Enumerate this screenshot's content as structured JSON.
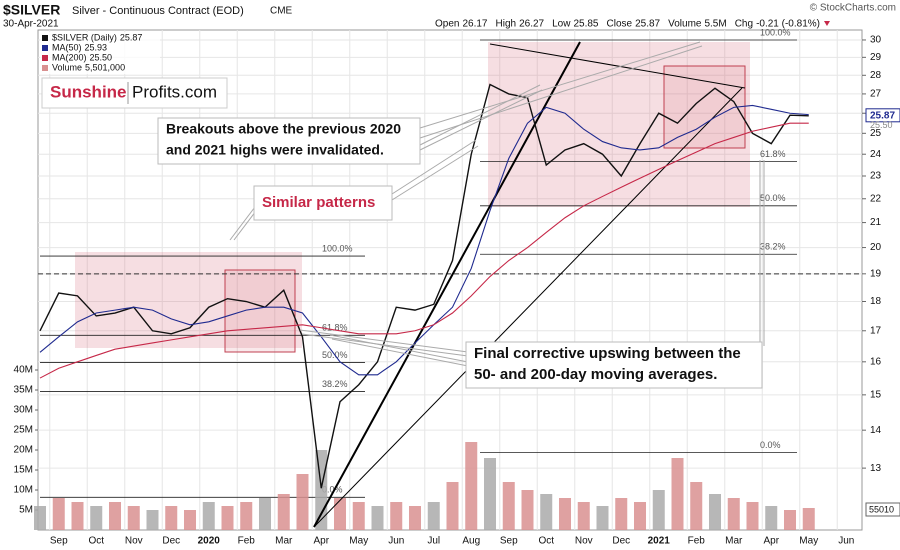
{
  "chart_data": {
    "type": "line",
    "title": "$SILVER",
    "subtitle": "Silver - Continuous Contract (EOD)",
    "exchange": "CME",
    "date": "30-Apr-2021",
    "copyright": "© StockCharts.com",
    "quote": [
      {
        "label": "Open",
        "value": "26.17"
      },
      {
        "label": "High",
        "value": "26.27"
      },
      {
        "label": "Low",
        "value": "25.85"
      },
      {
        "label": "Close",
        "value": "25.87"
      },
      {
        "label": "Volume",
        "value": "5.5M"
      },
      {
        "label": "Chg",
        "value": "-0.21 (-0.81%)"
      }
    ],
    "log_scale": true,
    "grid": true,
    "categories": [
      null,
      "Sep",
      null,
      "Oct",
      null,
      "Nov",
      null,
      "Dec",
      null,
      "2020",
      null,
      "Feb",
      null,
      "Mar",
      null,
      "Apr",
      null,
      "May",
      null,
      "Jun",
      null,
      "Jul",
      null,
      "Aug",
      null,
      "Sep",
      null,
      "Oct",
      null,
      "Nov",
      null,
      "Dec",
      null,
      "2021",
      null,
      "Feb",
      null,
      "Mar",
      null,
      "Apr",
      null,
      "May",
      null,
      "Jun"
    ],
    "series": [
      {
        "name": "$SILVER (Daily)",
        "color": "#111111",
        "last_label": "25.87",
        "values": [
          17.0,
          18.3,
          18.2,
          17.5,
          17.6,
          17.8,
          17.0,
          16.9,
          17.1,
          17.8,
          18.1,
          18.0,
          17.8,
          18.4,
          16.8,
          12.5,
          14.8,
          15.3,
          16.0,
          17.8,
          17.7,
          17.9,
          19.5,
          24.0,
          27.5,
          27.0,
          26.8,
          23.5,
          24.2,
          24.5,
          24.0,
          23.0,
          24.5,
          26.0,
          25.5,
          26.5,
          27.3,
          26.6,
          25.0,
          24.5,
          25.9,
          25.87,
          null,
          null
        ]
      },
      {
        "name": "MA(50)",
        "color": "#1f2a8f",
        "last_label": "25.93",
        "values": [
          16.3,
          16.8,
          17.3,
          17.6,
          17.7,
          17.8,
          17.7,
          17.4,
          17.2,
          17.3,
          17.5,
          17.7,
          17.8,
          17.8,
          17.6,
          16.8,
          16.0,
          15.6,
          15.6,
          16.0,
          16.6,
          17.2,
          17.8,
          19.2,
          21.5,
          23.8,
          25.5,
          26.3,
          26.0,
          25.2,
          24.6,
          24.3,
          24.2,
          24.3,
          24.8,
          25.2,
          25.8,
          26.3,
          26.4,
          26.2,
          26.0,
          25.93,
          null,
          null
        ]
      },
      {
        "name": "MA(200)",
        "color": "#c62848",
        "last_label": "25.50",
        "values": [
          15.5,
          15.8,
          16.0,
          16.2,
          16.4,
          16.5,
          16.6,
          16.7,
          16.8,
          16.9,
          17.0,
          17.05,
          17.1,
          17.15,
          17.2,
          17.1,
          17.0,
          16.9,
          16.9,
          16.9,
          17.0,
          17.2,
          17.6,
          18.2,
          18.9,
          19.5,
          20.0,
          20.6,
          21.2,
          21.7,
          22.1,
          22.5,
          22.9,
          23.3,
          23.7,
          24.1,
          24.5,
          24.8,
          25.1,
          25.3,
          25.5,
          25.5,
          null,
          null
        ]
      },
      {
        "name": "Volume",
        "color": "#d99090",
        "axis": "y2",
        "last_label": "5,501,000",
        "values": [
          6000000,
          8000000,
          7000000,
          6000000,
          7000000,
          6000000,
          5000000,
          6000000,
          5000000,
          7000000,
          6000000,
          7000000,
          8000000,
          9000000,
          14000000,
          20000000,
          8000000,
          7000000,
          6000000,
          7000000,
          6000000,
          7000000,
          12000000,
          22000000,
          18000000,
          12000000,
          10000000,
          9000000,
          8000000,
          7000000,
          6000000,
          8000000,
          7000000,
          10000000,
          18000000,
          12000000,
          9000000,
          8000000,
          7000000,
          6000000,
          5000000,
          5501000,
          null,
          null
        ]
      }
    ],
    "ylim": [
      11.52,
      30.59
    ],
    "yticks": [
      13,
      14,
      15,
      16,
      17,
      18,
      19,
      20,
      21,
      22,
      23,
      24,
      25,
      26,
      27,
      28,
      29,
      30
    ],
    "y2lim": [
      0,
      40000000
    ],
    "y2ticks": [
      {
        "value": 5000000,
        "label": "5M"
      },
      {
        "value": 10000000,
        "label": "10M"
      },
      {
        "value": 15000000,
        "label": "15M"
      },
      {
        "value": 20000000,
        "label": "20M"
      },
      {
        "value": 25000000,
        "label": "25M"
      },
      {
        "value": 30000000,
        "label": "30M"
      },
      {
        "value": 35000000,
        "label": "35M"
      },
      {
        "value": 40000000,
        "label": "40M"
      }
    ],
    "volume_badge": "55010",
    "dashed_level": 19,
    "fibonacci": [
      {
        "levels": [
          {
            "label": "100.0%",
            "value": 19.67
          },
          {
            "label": "61.8%",
            "value": 16.85
          },
          {
            "label": "50.0%",
            "value": 15.98
          },
          {
            "label": "38.2%",
            "value": 15.1
          },
          {
            "label": "0.0%",
            "value": 12.28
          }
        ]
      },
      {
        "levels": [
          {
            "label": "100.0%",
            "value": 30.0
          },
          {
            "label": "61.8%",
            "value": 23.66
          },
          {
            "label": "50.0%",
            "value": 21.7
          },
          {
            "label": "38.2%",
            "value": 19.74
          },
          {
            "label": "0.0%",
            "value": 13.4
          }
        ]
      }
    ],
    "logo": {
      "part1": "Sunshine",
      "part2": "Profits.com"
    },
    "annotations": [
      {
        "lines": [
          "Breakouts above the previous 2020",
          "and 2021 highs were invalidated."
        ]
      },
      {
        "lines": [
          "Similar patterns"
        ]
      },
      {
        "lines": [
          "Final corrective upswing between the",
          "50- and 200-day moving averages."
        ]
      }
    ]
  }
}
